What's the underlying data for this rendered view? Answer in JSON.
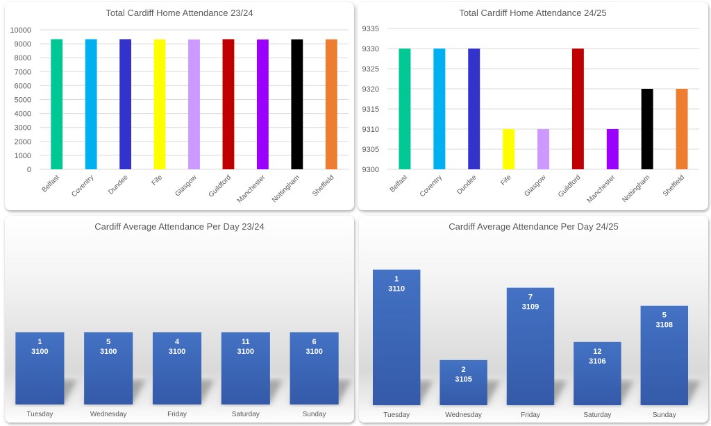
{
  "chart_data": [
    {
      "type": "bar",
      "title": "Total Cardiff Home Attendance 23/24",
      "categories": [
        "Belfast",
        "Coventry",
        "Dundee",
        "Fife",
        "Glasgow",
        "Guildford",
        "Manchester",
        "Nottingham",
        "Sheffield"
      ],
      "values": [
        9330,
        9330,
        9330,
        9310,
        9310,
        9330,
        9310,
        9320,
        9320
      ],
      "colors": [
        "#00C895",
        "#00B0F0",
        "#3333CC",
        "#FFFF00",
        "#CC99FF",
        "#C00000",
        "#9900FF",
        "#000000",
        "#ED7D31"
      ],
      "yticks": [
        0,
        1000,
        2000,
        3000,
        4000,
        5000,
        6000,
        7000,
        8000,
        9000,
        10000
      ],
      "ylim": [
        0,
        10000
      ],
      "grid": true,
      "xlabel": "",
      "ylabel": ""
    },
    {
      "type": "bar",
      "title": "Total Cardiff Home Attendance 24/25",
      "categories": [
        "Belfast",
        "Coventry",
        "Dundee",
        "Fife",
        "Glasgow",
        "Guildford",
        "Manchester",
        "Nottingham",
        "Sheffield"
      ],
      "values": [
        9330,
        9330,
        9330,
        9310,
        9310,
        9330,
        9310,
        9320,
        9320
      ],
      "colors": [
        "#00C895",
        "#00B0F0",
        "#3333CC",
        "#FFFF00",
        "#CC99FF",
        "#C00000",
        "#9900FF",
        "#000000",
        "#ED7D31"
      ],
      "yticks": [
        9300,
        9305,
        9310,
        9315,
        9320,
        9325,
        9330,
        9335
      ],
      "ylim": [
        9300,
        9335
      ],
      "grid": true,
      "xlabel": "",
      "ylabel": ""
    },
    {
      "type": "bar",
      "title": "Cardiff Average Attendance Per Day 23/24",
      "categories": [
        "Tuesday",
        "Wednesday",
        "Friday",
        "Saturday",
        "Sunday"
      ],
      "counts": [
        "1",
        "5",
        "4",
        "11",
        "6"
      ],
      "values": [
        3100,
        3100,
        3100,
        3100,
        3100
      ],
      "ylim": [
        3099,
        3101
      ],
      "color": "#4472C4",
      "grid": false,
      "xlabel": "",
      "ylabel": ""
    },
    {
      "type": "bar",
      "title": "Cardiff Average Attendance Per Day 24/25",
      "categories": [
        "Tuesday",
        "Wednesday",
        "Friday",
        "Saturday",
        "Sunday"
      ],
      "counts": [
        "1",
        "2",
        "7",
        "12",
        "5"
      ],
      "values": [
        3110,
        3105,
        3109,
        3106,
        3108
      ],
      "ylim": [
        3102.5,
        3110.6
      ],
      "color": "#4472C4",
      "grid": false,
      "xlabel": "",
      "ylabel": ""
    }
  ]
}
